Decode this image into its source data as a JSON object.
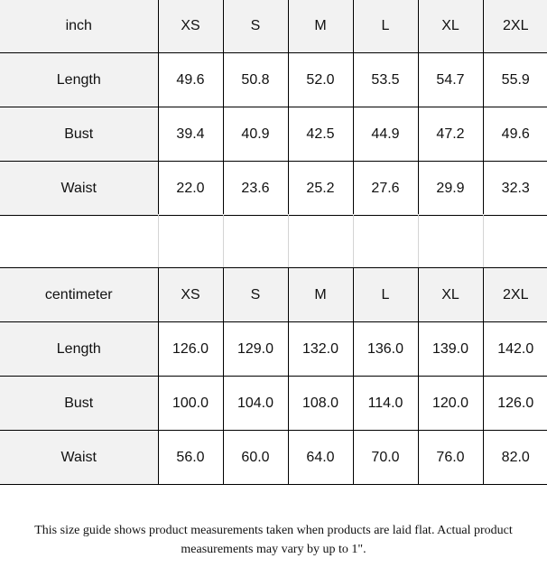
{
  "sizes": [
    "XS",
    "S",
    "M",
    "L",
    "XL",
    "2XL"
  ],
  "inch_table": {
    "unit_label": "inch",
    "rows": [
      {
        "label": "Length",
        "values": [
          "49.6",
          "50.8",
          "52.0",
          "53.5",
          "54.7",
          "55.9"
        ]
      },
      {
        "label": "Bust",
        "values": [
          "39.4",
          "40.9",
          "42.5",
          "44.9",
          "47.2",
          "49.6"
        ]
      },
      {
        "label": "Waist",
        "values": [
          "22.0",
          "23.6",
          "25.2",
          "27.6",
          "29.9",
          "32.3"
        ]
      }
    ]
  },
  "cm_table": {
    "unit_label": "centimeter",
    "rows": [
      {
        "label": "Length",
        "values": [
          "126.0",
          "129.0",
          "132.0",
          "136.0",
          "139.0",
          "142.0"
        ]
      },
      {
        "label": "Bust",
        "values": [
          "100.0",
          "104.0",
          "108.0",
          "114.0",
          "120.0",
          "126.0"
        ]
      },
      {
        "label": "Waist",
        "values": [
          "56.0",
          "60.0",
          "64.0",
          "70.0",
          "76.0",
          "82.0"
        ]
      }
    ]
  },
  "note": "This size guide shows product measurements taken when products are laid flat. Actual product measurements may vary by up to 1\"."
}
